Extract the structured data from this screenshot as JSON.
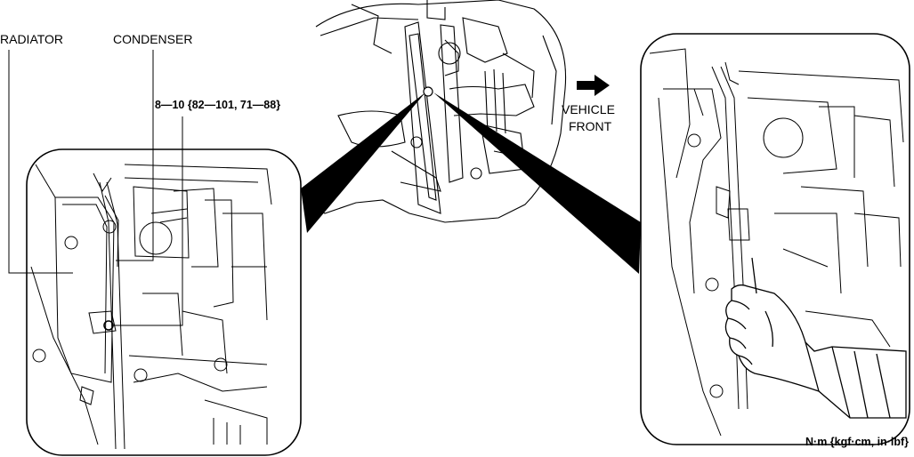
{
  "labels": {
    "radiator": "RADIATOR",
    "condenser": "CONDENSER",
    "torque": "8—10 {82—101, 71—88}",
    "vehicle_front_line1": "VEHICLE",
    "vehicle_front_line2": "FRONT",
    "units": "N·m {kgf·cm, in·lbf}"
  },
  "icons": {
    "direction": "arrow-right-icon"
  },
  "colors": {
    "line": "#000000",
    "background": "#ffffff"
  }
}
